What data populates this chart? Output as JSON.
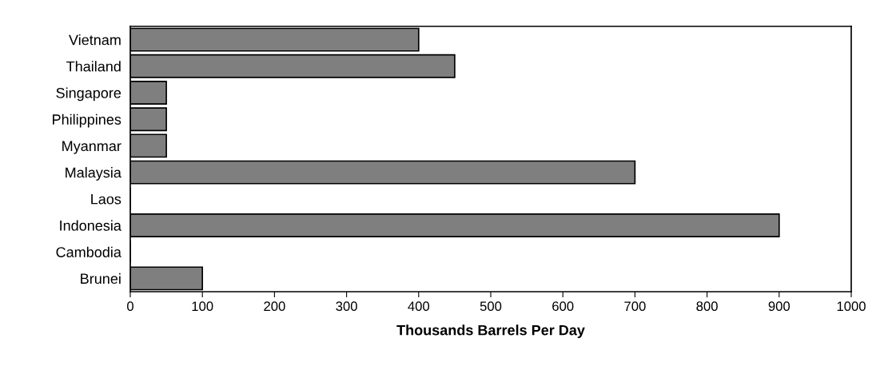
{
  "chart_data": {
    "type": "bar",
    "orientation": "horizontal",
    "xlabel": "Thousands Barrels Per Day",
    "categories": [
      "Vietnam",
      "Thailand",
      "Singapore",
      "Philippines",
      "Myanmar",
      "Malaysia",
      "Laos",
      "Indonesia",
      "Cambodia",
      "Brunei"
    ],
    "values": [
      400,
      450,
      50,
      50,
      50,
      700,
      0,
      900,
      0,
      100
    ],
    "color": "#7f7f7f",
    "xlim": [
      0,
      1000
    ],
    "xticks": [
      0,
      100,
      200,
      300,
      400,
      500,
      600,
      700,
      800,
      900,
      1000
    ],
    "grid": false,
    "legend": false
  }
}
